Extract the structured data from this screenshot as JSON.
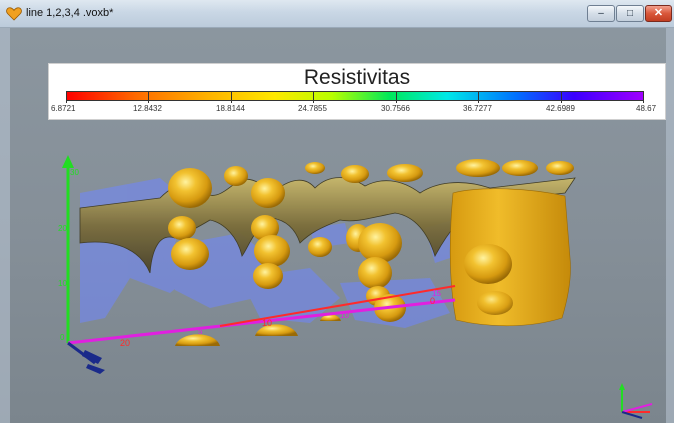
{
  "window": {
    "title": "line 1,2,3,4 .voxb*",
    "min_label": "–",
    "max_label": "□",
    "close_label": "✕"
  },
  "legend": {
    "title": "Resistivitas",
    "ticks": [
      "6.8721",
      "12.8432",
      "18.8144",
      "24.7855",
      "30.7566",
      "36.7277",
      "42.6989",
      "48.67"
    ]
  },
  "axes": {
    "x_labels": [
      "20",
      "10",
      "0"
    ],
    "y_labels": [
      "5",
      "10",
      "15"
    ],
    "z_labels": [
      "30",
      "20",
      "10",
      "0"
    ]
  },
  "icons": {
    "app": "voxler-heart-icon",
    "triad": "axis-triad-icon"
  },
  "colors": {
    "isosurface": "#e8ad1e",
    "slice": "#6f86ff",
    "axis_x": "#ff2a2a",
    "axis_y": "#e020e0",
    "axis_z": "#22dd22"
  }
}
